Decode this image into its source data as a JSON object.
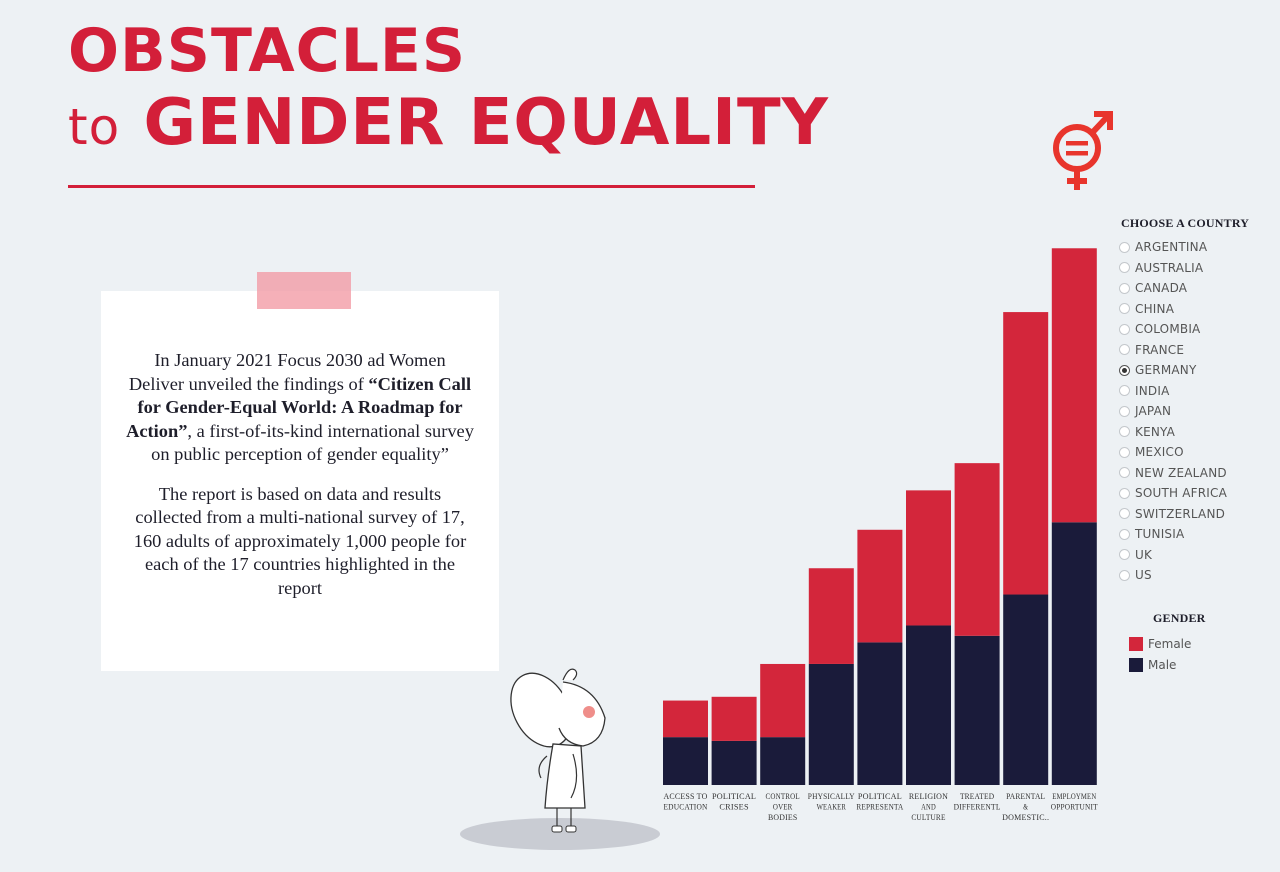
{
  "title": {
    "line1": "OBSTACLES",
    "line2_small": "to",
    "line2_big": "GENDER EQUALITY"
  },
  "intro": {
    "p1_before": "In January 2021 Focus 2030 ad Women Deliver unveiled the findings of ",
    "p1_bold": "“Citizen Call for Gender-Equal World: A Roadmap for Action”",
    "p1_after": ", a first-of-its-kind international survey on public perception of gender equality”",
    "p2": "The report is based on data and results collected from a multi-national survey of 17, 160 adults of approximately 1,000 people for each of the 17 countries highlighted in the report"
  },
  "country_filter": {
    "heading": "CHOOSE A COUNTRY",
    "options": [
      "ARGENTINA",
      "AUSTRALIA",
      "CANADA",
      "CHINA",
      "COLOMBIA",
      "FRANCE",
      "GERMANY",
      "INDIA",
      "JAPAN",
      "KENYA",
      "MEXICO",
      "NEW ZEALAND",
      "SOUTH AFRICA",
      "SWITZERLAND",
      "TUNISIA",
      "UK",
      "US"
    ],
    "selected": "GERMANY"
  },
  "legend": {
    "heading": "GENDER",
    "items": [
      {
        "label": "Female",
        "color": "#d3263b"
      },
      {
        "label": "Male",
        "color": "#1a1b3a"
      }
    ]
  },
  "chart_data": {
    "type": "bar",
    "stacked": true,
    "categories": [
      [
        "ACCESS TO",
        "EDUCATION"
      ],
      [
        "POLITICAL",
        "CRISES"
      ],
      [
        "CONTROL",
        "OVER",
        "BODIES"
      ],
      [
        "PHYSICALLY",
        "WEAKER"
      ],
      [
        "POLITICAL",
        "REPRESENTA"
      ],
      [
        "RELIGION",
        "AND",
        "CULTURE"
      ],
      [
        "TREATED",
        "DIFFERENTL"
      ],
      [
        "PARENTAL",
        "&",
        "DOMESTIC.."
      ],
      [
        "EMPLOYMEN",
        "OPPORTUNIT"
      ]
    ],
    "series": [
      {
        "name": "Male",
        "color": "#1a1b3a",
        "values": [
          51,
          47,
          51,
          129,
          152,
          170,
          159,
          203,
          280
        ]
      },
      {
        "name": "Female",
        "color": "#d3263b",
        "values": [
          39,
          47,
          78,
          102,
          120,
          144,
          184,
          301,
          292
        ]
      }
    ],
    "ylim": [
      0,
      600
    ],
    "grid": false
  }
}
